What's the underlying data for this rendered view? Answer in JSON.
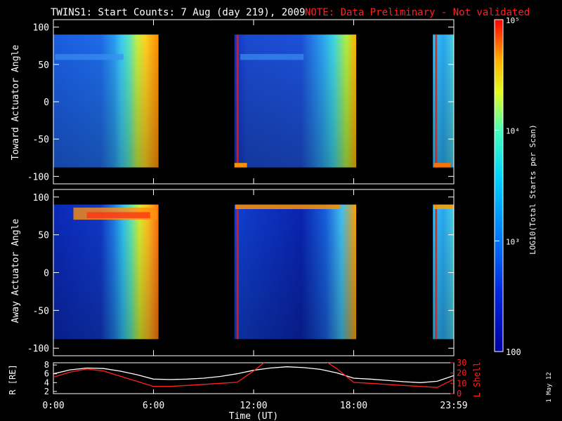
{
  "header": {
    "title": "TWINS1: Start Counts:  7 Aug (day 219), 2009",
    "note": "NOTE: Data Preliminary - Not validated",
    "note_color": "#ff2020"
  },
  "side_stamp": "1 May 12",
  "chart_data": [
    {
      "type": "heatmap",
      "ylabel": "Toward Actuator Angle",
      "yticks": [
        "100",
        "50",
        "0",
        "-50",
        "-100"
      ],
      "ylim": [
        -110,
        110
      ],
      "x_range_hours": [
        0,
        24
      ],
      "data_y_range": [
        -88,
        90
      ],
      "segments": [
        {
          "start": 0.0,
          "end": 6.3
        },
        {
          "start": 10.85,
          "end": 18.15
        },
        {
          "start": 22.75,
          "end": 24.0
        }
      ]
    },
    {
      "type": "heatmap",
      "ylabel": "Away Actuator Angle",
      "yticks": [
        "100",
        "50",
        "0",
        "-50",
        "-100"
      ],
      "ylim": [
        -110,
        110
      ],
      "x_range_hours": [
        0,
        24
      ],
      "data_y_range": [
        -88,
        90
      ],
      "segments": [
        {
          "start": 0.0,
          "end": 6.3
        },
        {
          "start": 10.85,
          "end": 18.15
        },
        {
          "start": 22.75,
          "end": 24.0
        }
      ]
    },
    {
      "type": "line",
      "xlabel": "Time (UT)",
      "xticks": [
        "0:00",
        "6:00",
        "12:00",
        "18:00",
        "23:59"
      ],
      "ylabel_left": "R [RE]",
      "ylabel_right": "L Shell",
      "yticks_left": [
        "8",
        "6",
        "4",
        "2"
      ],
      "ylim_left": [
        1.5,
        8.5
      ],
      "yticks_right": [
        "30",
        "20",
        "10",
        "0"
      ],
      "ylim_right": [
        0,
        30
      ],
      "series": [
        {
          "name": "R [RE]",
          "color": "#ffffff",
          "x": [
            0,
            1,
            2,
            3,
            4,
            5,
            6,
            7,
            8,
            9,
            10,
            11,
            12,
            13,
            14,
            15,
            16,
            17,
            18,
            19,
            20,
            21,
            22,
            23,
            24
          ],
          "y": [
            6.0,
            6.9,
            7.3,
            7.2,
            6.6,
            5.8,
            4.8,
            4.7,
            4.8,
            5.0,
            5.4,
            6.0,
            6.8,
            7.3,
            7.6,
            7.4,
            7.0,
            6.2,
            5.0,
            4.8,
            4.5,
            4.2,
            4.0,
            4.3,
            5.6
          ]
        },
        {
          "name": "L Shell",
          "color": "#ff2020",
          "x": [
            0,
            1,
            2,
            3,
            4,
            5,
            6,
            7,
            8,
            9,
            10,
            11,
            12,
            13,
            14,
            15,
            16,
            17,
            18,
            19,
            20,
            21,
            22,
            23,
            24
          ],
          "y": [
            16,
            21,
            24,
            22,
            17,
            12,
            7,
            7,
            8,
            9,
            10,
            11,
            22,
            35,
            36,
            36,
            35,
            24,
            11,
            10,
            9,
            8,
            7,
            6,
            14
          ]
        }
      ]
    }
  ],
  "colorbar": {
    "label": "LOG10(Total Starts per Scan)",
    "ticks": [
      "100",
      "10³",
      "10⁴",
      "10⁵"
    ],
    "range_log": [
      2,
      5
    ]
  }
}
